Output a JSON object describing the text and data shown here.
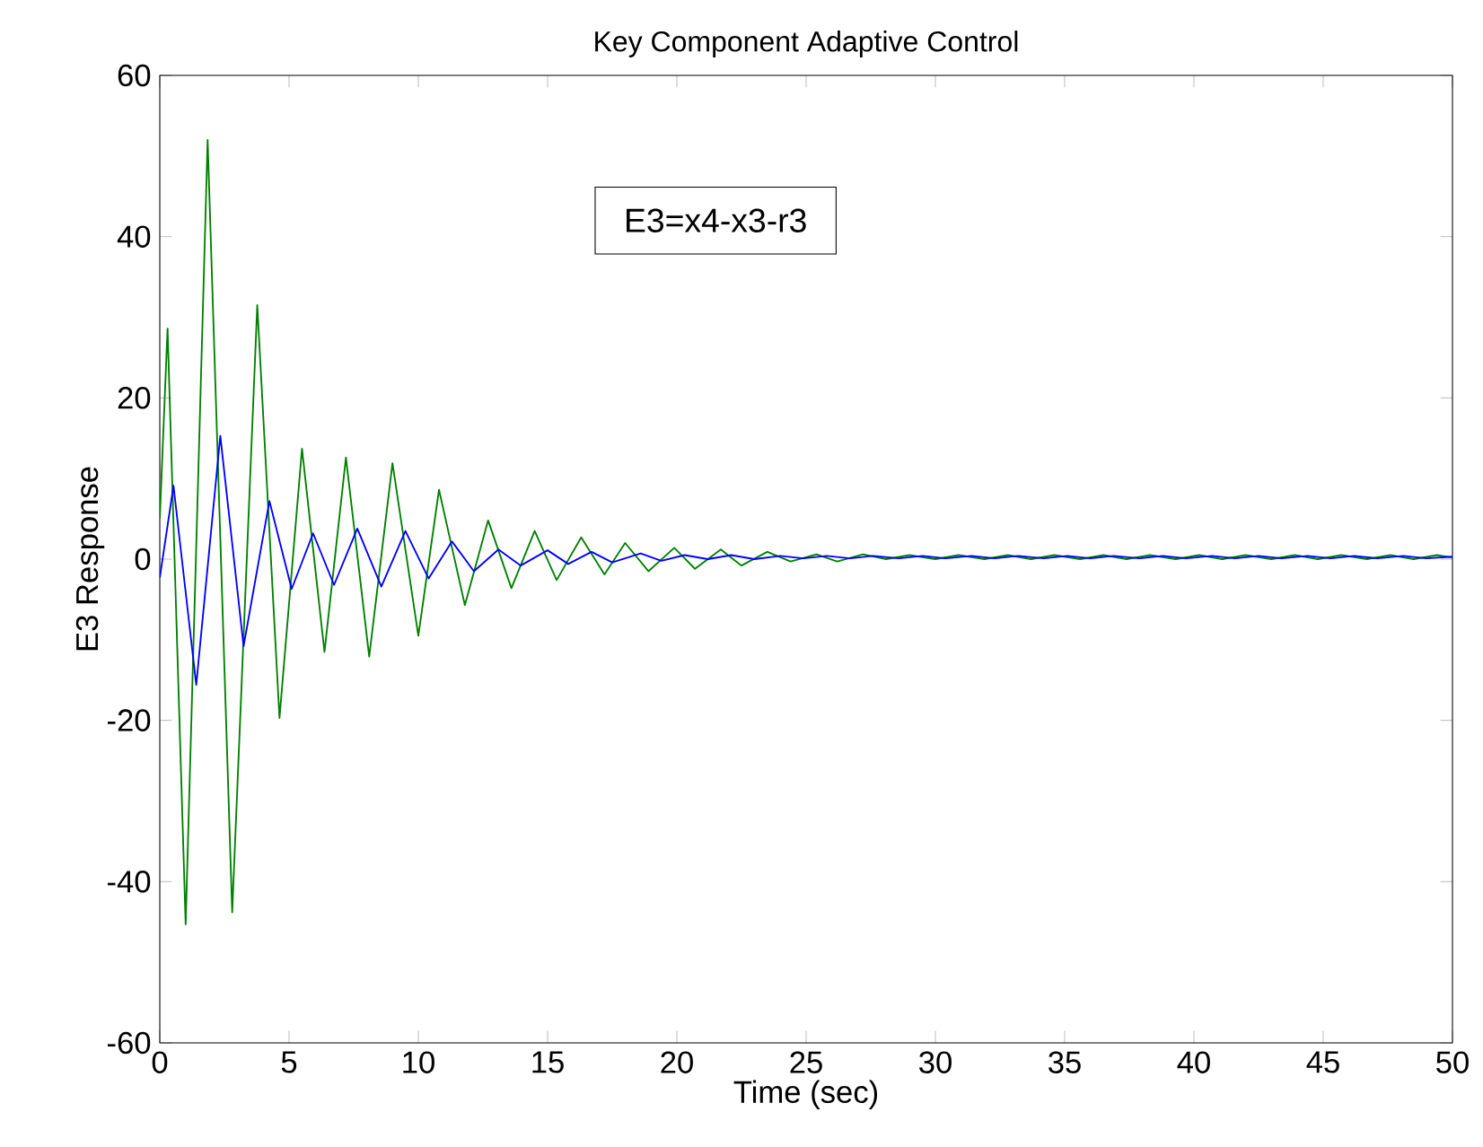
{
  "chart_data": {
    "type": "line",
    "title": "Key Component Adaptive Control",
    "xlabel": "Time (sec)",
    "ylabel": "E3 Response",
    "annotations": [
      "E3=x4-x3-r3"
    ],
    "xlim": [
      0,
      50
    ],
    "ylim": [
      -60,
      60
    ],
    "xticks": [
      0,
      5,
      10,
      15,
      20,
      25,
      30,
      35,
      40,
      45,
      50
    ],
    "yticks": [
      -60,
      -40,
      -20,
      0,
      20,
      40,
      60
    ],
    "grid": false,
    "marker": "none",
    "line_style": "solid",
    "series": [
      {
        "color": "#008000",
        "x": [
          0,
          0.3,
          1.0,
          1.85,
          2.8,
          3.77,
          4.63,
          5.5,
          6.37,
          7.2,
          8.1,
          9.0,
          10.0,
          10.8,
          11.8,
          12.7,
          13.6,
          14.5,
          15.35,
          16.3,
          17.2,
          18.0,
          18.9,
          19.9,
          20.7,
          21.7,
          22.5,
          23.5,
          24.4,
          25.4,
          26.2,
          27.2,
          28.1,
          29.0,
          30.0,
          30.9,
          31.9,
          32.8,
          33.7,
          34.6,
          35.6,
          36.5,
          37.4,
          38.3,
          39.3,
          40.2,
          41.1,
          42.0,
          43.0,
          43.9,
          44.8,
          45.7,
          46.7,
          47.6,
          48.5,
          49.4,
          50
        ],
        "values": [
          5,
          28.6,
          -45.3,
          52,
          -43.8,
          31.5,
          -19.7,
          13.7,
          -11.5,
          12.6,
          -12.1,
          11.9,
          -9.5,
          8.6,
          -5.7,
          4.8,
          -3.6,
          3.5,
          -2.6,
          2.7,
          -1.9,
          2.0,
          -1.5,
          1.4,
          -1.2,
          1.2,
          -0.8,
          0.9,
          -0.3,
          0.6,
          -0.3,
          0.6,
          0,
          0.5,
          0,
          0.5,
          0,
          0.5,
          0,
          0.5,
          0,
          0.5,
          0,
          0.5,
          0,
          0.5,
          0,
          0.5,
          0,
          0.5,
          0,
          0.5,
          0,
          0.5,
          0,
          0.5,
          0.2
        ]
      },
      {
        "color": "#0000ff",
        "x": [
          0,
          0.53,
          1.41,
          2.34,
          3.24,
          4.24,
          5.1,
          5.93,
          6.74,
          7.64,
          8.57,
          9.5,
          10.4,
          11.3,
          12.15,
          13.1,
          13.96,
          15.0,
          15.8,
          16.7,
          17.5,
          18.6,
          19.4,
          20.3,
          21.2,
          22.1,
          23.0,
          24.0,
          24.9,
          25.8,
          26.7,
          27.6,
          28.6,
          29.5,
          30.4,
          31.4,
          32.3,
          33.2,
          34.2,
          35.1,
          36.0,
          36.9,
          37.9,
          38.8,
          39.7,
          40.7,
          41.6,
          42.5,
          43.4,
          44.4,
          45.3,
          46.2,
          47.1,
          48.1,
          49.0,
          50
        ],
        "values": [
          -2.3,
          9.1,
          -15.6,
          15.3,
          -10.8,
          7.2,
          -3.7,
          3.2,
          -3.2,
          3.8,
          -3.4,
          3.5,
          -2.4,
          2.2,
          -1.5,
          1.2,
          -0.8,
          1.1,
          -0.6,
          0.9,
          -0.4,
          0.7,
          -0.2,
          0.5,
          0,
          0.5,
          0,
          0.4,
          0.1,
          0.4,
          0.1,
          0.4,
          0.1,
          0.4,
          0.1,
          0.4,
          0.1,
          0.4,
          0.1,
          0.4,
          0.1,
          0.4,
          0.1,
          0.4,
          0.1,
          0.4,
          0.1,
          0.4,
          0.1,
          0.4,
          0.1,
          0.4,
          0.1,
          0.4,
          0.1,
          0.3
        ]
      }
    ]
  }
}
